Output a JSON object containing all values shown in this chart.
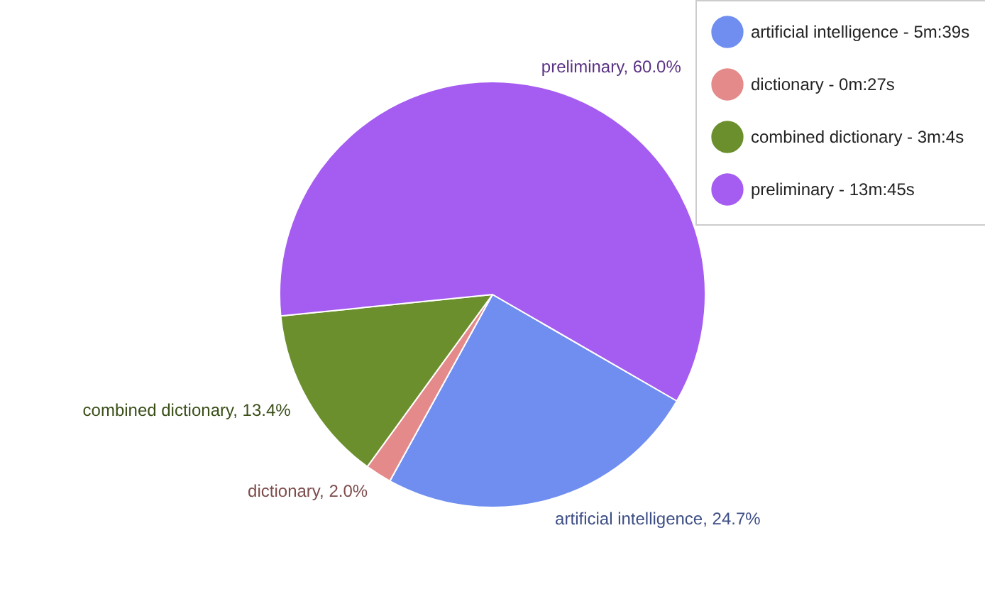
{
  "chart_data": {
    "type": "pie",
    "categories": [
      "artificial intelligence - 5m:39s",
      "dictionary - 0m:27s",
      "combined dictionary - 3m:4s",
      "preliminary - 13m:45s"
    ],
    "values": [
      24.7,
      2.0,
      13.4,
      60.0
    ],
    "colors": [
      "#6f8ef0",
      "#e58a8a",
      "#6b8f2c",
      "#a55cf0"
    ],
    "value_labels": [
      "artificial intelligence, 24.7%",
      "dictionary, 2.0%",
      "combined dictionary, 13.4%",
      "preliminary, 60.0%"
    ],
    "legend": "top right"
  }
}
